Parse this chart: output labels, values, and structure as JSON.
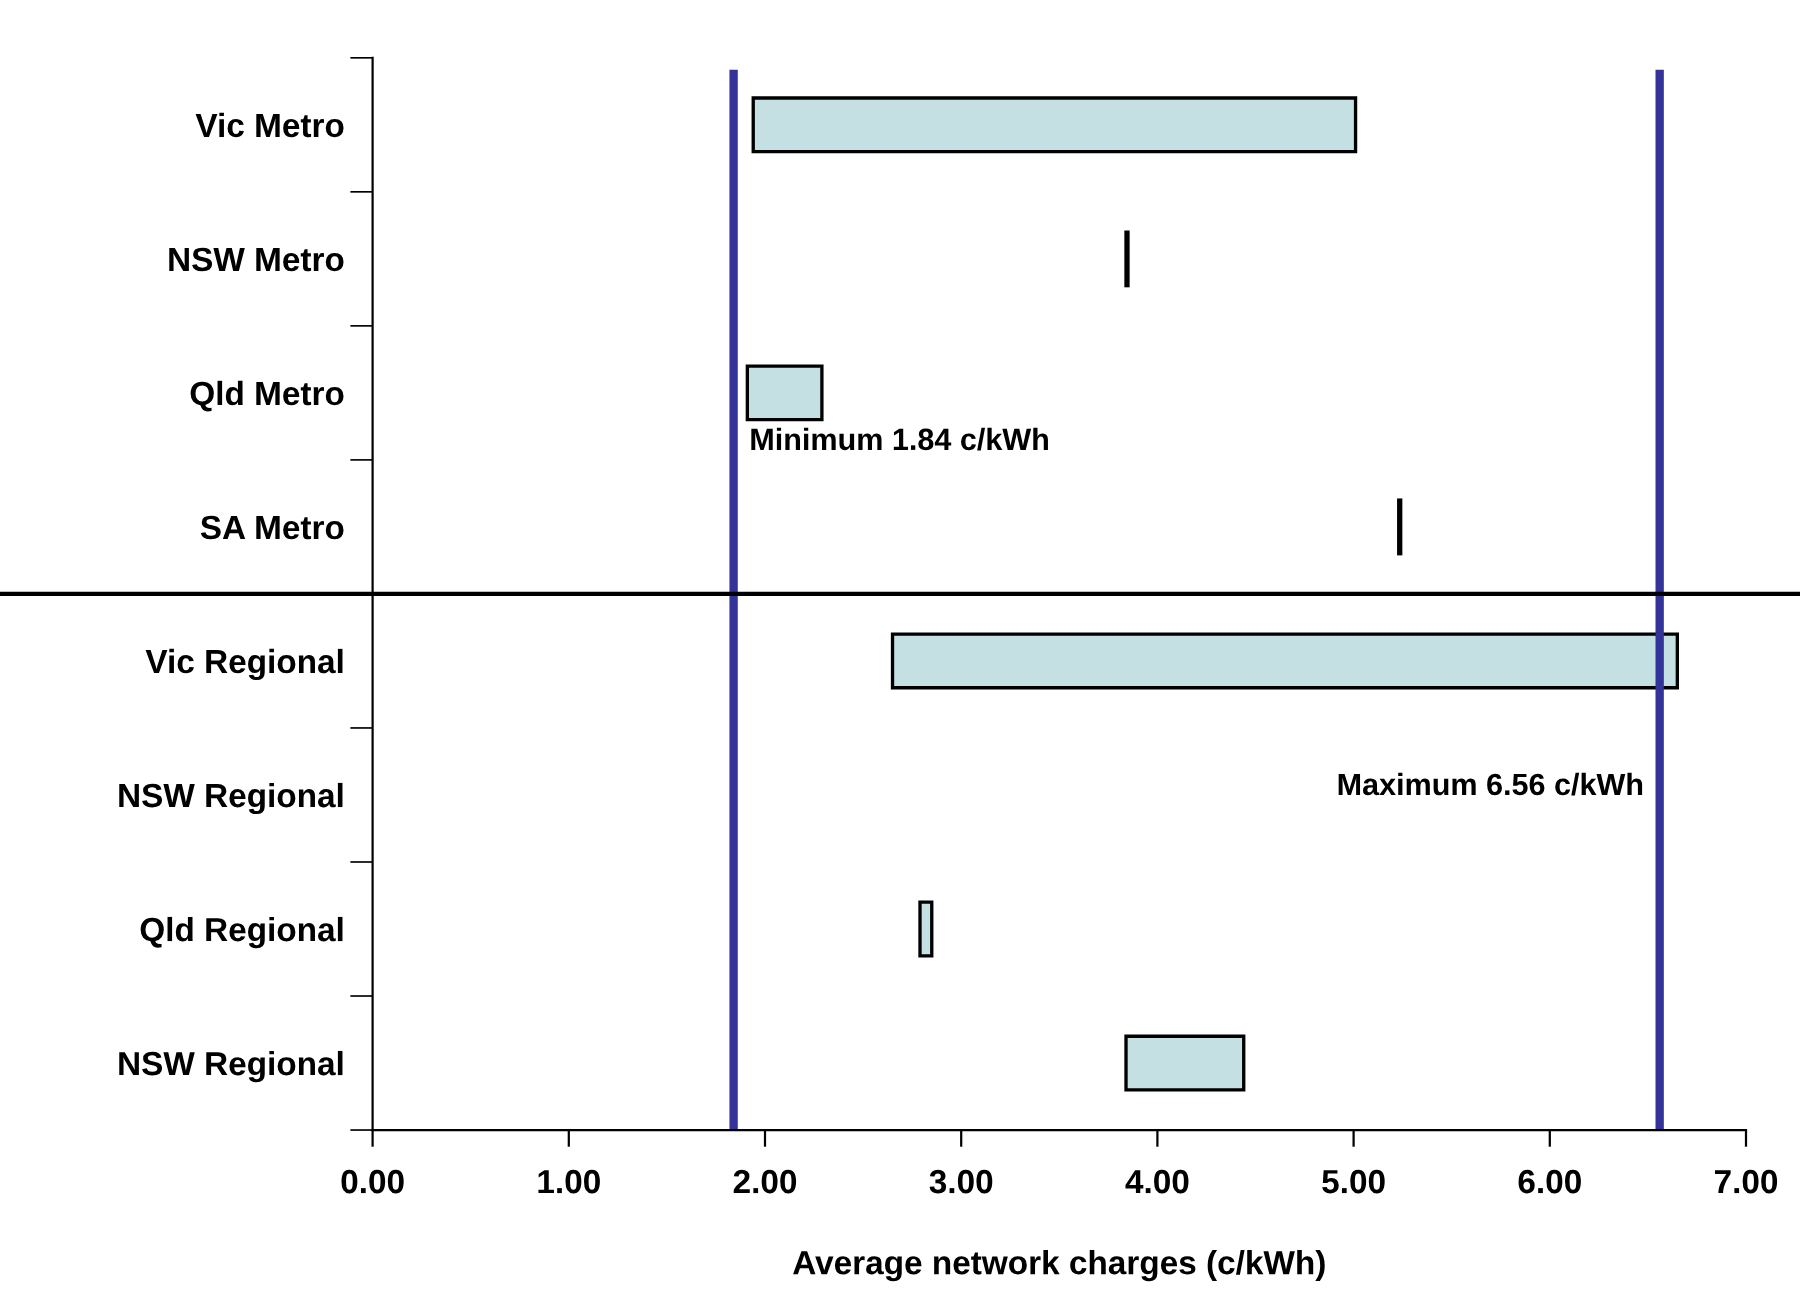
{
  "chart_data": {
    "type": "bar",
    "orientation": "horizontal",
    "categories": [
      "Vic Metro",
      "NSW Metro",
      "Qld Metro",
      "SA Metro",
      "Vic Regional",
      "NSW Regional",
      "Qld Regional",
      "NSW Regional"
    ],
    "base": [
      1.94,
      3.84,
      1.91,
      5.23,
      2.65,
      null,
      2.79,
      3.84
    ],
    "values": [
      3.07,
      0.01,
      0.38,
      0.01,
      4.0,
      null,
      0.06,
      0.6
    ],
    "color": "#c5e0e3",
    "xlabel": "Average network charges (c/kWh)",
    "xlim": [
      0,
      7
    ],
    "xticks": [
      {
        "value": 0,
        "label": "0.00"
      },
      {
        "value": 1,
        "label": "1.00"
      },
      {
        "value": 2,
        "label": "2.00"
      },
      {
        "value": 3,
        "label": "3.00"
      },
      {
        "value": 4,
        "label": "4.00"
      },
      {
        "value": 5,
        "label": "5.00"
      },
      {
        "value": 6,
        "label": "6.00"
      },
      {
        "value": 7,
        "label": "7.00"
      }
    ],
    "ref_lines": [
      {
        "axis": "x",
        "value": 1.84,
        "label": "Minimum 1.84 c/kWh",
        "color": "#333399"
      },
      {
        "axis": "x",
        "value": 6.56,
        "label": "Maximum 6.56 c/kWh",
        "color": "#333399"
      }
    ],
    "grid": false,
    "legend": false
  }
}
